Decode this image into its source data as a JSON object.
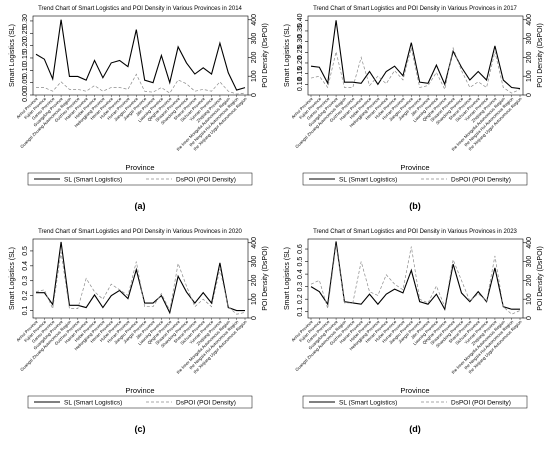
{
  "provinces": [
    "Anhui Province",
    "Fujian Province",
    "Gansu Province",
    "Guangdong Province",
    "Guangxi Zhuang Autonomous Region",
    "Guizhou Province",
    "Hainan Province",
    "Hebei Province",
    "Heilongjiang Province",
    "Henan Province",
    "Hubei Province",
    "Hunan Province",
    "Jiangsu Province",
    "Jiangxi Province",
    "Jilin Province",
    "Liaoning Province",
    "Qinghai Province",
    "Shaanxi Province",
    "Shandong Province",
    "Shanxi Province",
    "Sichuan Province",
    "Yunnan Province",
    "Zhejiang Province",
    "the Inner Mongolia Autonomous Region",
    "the Ningxia Hui Autonomous Region",
    "the Xinjiang Uygur Autonomous Region"
  ],
  "chart_data": [
    {
      "type": "line",
      "caption": "(a)",
      "title": "Trend Chart of Smart Logistics and POI Density in Various Provinces in 2014",
      "xlabel": "Province",
      "ylabel": "Smart Logistics (SL)",
      "y2label": "POI Density (DsPOI)",
      "yticks": [
        0,
        0.05,
        0.1,
        0.15,
        0.2,
        0.25,
        0.3
      ],
      "ylim": [
        0,
        0.32
      ],
      "y2ticks": [
        0,
        100,
        200,
        300,
        400
      ],
      "y2lim": [
        0,
        420
      ],
      "series": [
        {
          "name": "SL (Smart Logistics)",
          "axis": "left",
          "values": [
            0.165,
            0.145,
            0.065,
            0.305,
            0.075,
            0.075,
            0.06,
            0.14,
            0.07,
            0.13,
            0.14,
            0.115,
            0.265,
            0.06,
            0.05,
            0.16,
            0.05,
            0.195,
            0.13,
            0.085,
            0.11,
            0.085,
            0.21,
            0.09,
            0.02,
            0.03
          ]
        },
        {
          "name": "DsPOI (POI Density)",
          "axis": "right",
          "values": [
            40,
            40,
            20,
            70,
            30,
            30,
            20,
            50,
            20,
            40,
            40,
            30,
            110,
            20,
            15,
            40,
            10,
            80,
            60,
            20,
            30,
            20,
            70,
            20,
            5,
            10
          ]
        }
      ],
      "legend": "bottom"
    },
    {
      "type": "line",
      "caption": "(b)",
      "title": "Trend Chart of Smart Logistics and POI Density in Various Provinces in 2017",
      "xlabel": "Province",
      "ylabel": "Smart Logistics (SL)",
      "y2label": "POI Density (DsPOI)",
      "yticks": [
        0.1,
        0.15,
        0.2,
        0.25,
        0.3,
        0.35,
        0.4
      ],
      "ylim": [
        0.05,
        0.42
      ],
      "y2ticks": [
        0,
        100,
        200,
        300,
        400
      ],
      "y2lim": [
        0,
        420
      ],
      "series": [
        {
          "name": "SL (Smart Logistics)",
          "axis": "left",
          "values": [
            0.185,
            0.18,
            0.105,
            0.4,
            0.11,
            0.11,
            0.105,
            0.16,
            0.1,
            0.16,
            0.185,
            0.14,
            0.295,
            0.11,
            0.105,
            0.19,
            0.1,
            0.255,
            0.18,
            0.12,
            0.16,
            0.12,
            0.28,
            0.12,
            0.085,
            0.08
          ]
        },
        {
          "name": "DsPOI (POI Density)",
          "axis": "right",
          "values": [
            90,
            100,
            40,
            230,
            40,
            40,
            200,
            50,
            100,
            60,
            130,
            80,
            250,
            40,
            50,
            120,
            30,
            250,
            130,
            40,
            70,
            40,
            230,
            40,
            10,
            30
          ]
        }
      ],
      "legend": "bottom"
    },
    {
      "type": "line",
      "caption": "(c)",
      "title": "Trend Chart of Smart Logistics and POI Density in Various Provinces in 2020",
      "xlabel": "Province",
      "ylabel": "Smart Logistics (SL)",
      "y2label": "POI Density (DsPOI)",
      "yticks": [
        0.1,
        0.2,
        0.3,
        0.4,
        0.5
      ],
      "ylim": [
        0.05,
        0.58
      ],
      "y2ticks": [
        0,
        100,
        200,
        300,
        400
      ],
      "y2lim": [
        0,
        420
      ],
      "series": [
        {
          "name": "SL (Smart Logistics)",
          "axis": "left",
          "values": [
            0.22,
            0.22,
            0.14,
            0.56,
            0.135,
            0.135,
            0.12,
            0.205,
            0.12,
            0.2,
            0.235,
            0.18,
            0.375,
            0.15,
            0.15,
            0.2,
            0.085,
            0.33,
            0.225,
            0.15,
            0.22,
            0.15,
            0.42,
            0.12,
            0.1,
            0.1
          ]
        },
        {
          "name": "DsPOI (POI Density)",
          "axis": "right",
          "values": [
            140,
            150,
            50,
            350,
            50,
            50,
            210,
            140,
            100,
            180,
            150,
            120,
            300,
            60,
            60,
            130,
            40,
            290,
            170,
            60,
            100,
            60,
            260,
            60,
            20,
            30
          ]
        }
      ],
      "legend": "bottom"
    },
    {
      "type": "line",
      "caption": "(d)",
      "title": "Trend Chart of Smart Logistics and POI Density in Various Provinces in 2023",
      "xlabel": "Province",
      "ylabel": "Smart Logistics (SL)",
      "y2label": "POI Density (DsPOI)",
      "yticks": [
        0.1,
        0.2,
        0.3,
        0.4,
        0.5,
        0.6
      ],
      "ylim": [
        0.05,
        0.68
      ],
      "y2ticks": [
        0,
        100,
        200,
        300,
        400
      ],
      "y2lim": [
        0,
        420
      ],
      "series": [
        {
          "name": "SL (Smart Logistics)",
          "axis": "left",
          "values": [
            0.3,
            0.26,
            0.16,
            0.66,
            0.18,
            0.17,
            0.16,
            0.24,
            0.16,
            0.24,
            0.28,
            0.25,
            0.43,
            0.18,
            0.16,
            0.24,
            0.12,
            0.48,
            0.25,
            0.18,
            0.26,
            0.18,
            0.45,
            0.14,
            0.12,
            0.12
          ]
        },
        {
          "name": "DsPOI (POI Density)",
          "axis": "right",
          "values": [
            180,
            200,
            50,
            390,
            80,
            80,
            300,
            140,
            120,
            230,
            180,
            150,
            380,
            100,
            80,
            170,
            60,
            310,
            200,
            90,
            130,
            90,
            330,
            60,
            20,
            40
          ]
        }
      ],
      "legend": "bottom"
    }
  ]
}
